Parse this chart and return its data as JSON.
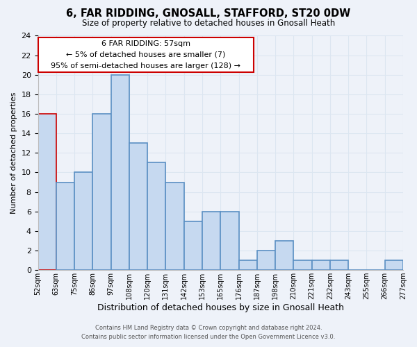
{
  "title": "6, FAR RIDDING, GNOSALL, STAFFORD, ST20 0DW",
  "subtitle": "Size of property relative to detached houses in Gnosall Heath",
  "xlabel": "Distribution of detached houses by size in Gnosall Heath",
  "ylabel": "Number of detached properties",
  "bin_labels": [
    "52sqm",
    "63sqm",
    "75sqm",
    "86sqm",
    "97sqm",
    "108sqm",
    "120sqm",
    "131sqm",
    "142sqm",
    "153sqm",
    "165sqm",
    "176sqm",
    "187sqm",
    "198sqm",
    "210sqm",
    "221sqm",
    "232sqm",
    "243sqm",
    "255sqm",
    "266sqm",
    "277sqm"
  ],
  "bar_heights": [
    16,
    9,
    10,
    16,
    20,
    13,
    11,
    9,
    5,
    6,
    6,
    1,
    2,
    3,
    1,
    1,
    1,
    0,
    0,
    1
  ],
  "bar_color": "#c6d9f0",
  "bar_edge_color": "#5a8fc3",
  "highlight_bar_index": 0,
  "highlight_edge_color": "#cc0000",
  "ylim": [
    0,
    24
  ],
  "yticks": [
    0,
    2,
    4,
    6,
    8,
    10,
    12,
    14,
    16,
    18,
    20,
    22,
    24
  ],
  "annotation_line1": "6 FAR RIDDING: 57sqm",
  "annotation_line2": "← 5% of detached houses are smaller (7)",
  "annotation_line3": "95% of semi-detached houses are larger (128) →",
  "annotation_edge_color": "#cc0000",
  "footer_line1": "Contains HM Land Registry data © Crown copyright and database right 2024.",
  "footer_line2": "Contains public sector information licensed under the Open Government Licence v3.0.",
  "grid_color": "#dce6f1",
  "background_color": "#eef2f9"
}
